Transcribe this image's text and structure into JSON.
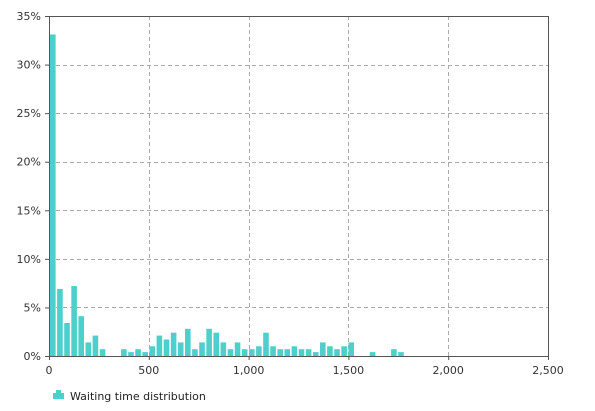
{
  "chart_data": {
    "type": "bar",
    "title": "",
    "xlabel": "",
    "ylabel": "",
    "xlim": [
      0,
      2500
    ],
    "ylim": [
      0,
      35
    ],
    "x_ticks": [
      0,
      500,
      1000,
      1500,
      2000,
      2500
    ],
    "x_tick_labels": [
      "0",
      "500",
      "1,000",
      "1,500",
      "2,000",
      "2,500"
    ],
    "y_ticks": [
      0,
      5,
      10,
      15,
      20,
      25,
      30,
      35
    ],
    "y_tick_labels": [
      "0%",
      "5%",
      "10%",
      "15%",
      "20%",
      "25%",
      "30%",
      "35%"
    ],
    "bin_width": 35.6,
    "grid": true,
    "legend_position": "bottom-left",
    "series": [
      {
        "name": "Waiting time distribution",
        "color": "#4dd0cc",
        "x": [
          0,
          35.6,
          71.2,
          106.8,
          142.4,
          178,
          213.6,
          249.2,
          284.8,
          320.4,
          356,
          391.6,
          427.2,
          462.8,
          498.4,
          534,
          569.6,
          605.2,
          640.8,
          676.4,
          712,
          747.6,
          783.2,
          818.8,
          854.4,
          890,
          925.6,
          961.2,
          996.8,
          1032.4,
          1068,
          1103.6,
          1139.2,
          1174.8,
          1210.4,
          1246,
          1281.6,
          1317.2,
          1352.8,
          1388.4,
          1424,
          1459.6,
          1495.2,
          1530.8,
          1566.4,
          1602,
          1637.6,
          1673.2,
          1708.8,
          1744.4,
          1780,
          1815.6,
          1851.2,
          1886.8,
          1922.4,
          1958,
          1993.6,
          2029.2,
          2064.8,
          2100.4,
          2136,
          2171.6,
          2207.2
        ],
        "values": [
          33.1,
          6.9,
          3.4,
          7.2,
          4.1,
          1.4,
          2.1,
          0.7,
          0,
          0,
          0.7,
          0.4,
          0.7,
          0.4,
          1.0,
          2.1,
          1.7,
          2.4,
          1.4,
          2.8,
          0.7,
          1.4,
          2.8,
          2.4,
          1.4,
          0.7,
          1.4,
          0.7,
          0.7,
          1.0,
          2.4,
          1.0,
          0.7,
          0.7,
          1.0,
          0.7,
          0.7,
          0.4,
          1.4,
          1.0,
          0.7,
          1.0,
          1.4,
          0,
          0,
          0.4,
          0,
          0,
          0.7,
          0.4,
          0,
          0,
          0,
          0,
          0,
          0,
          0,
          0,
          0,
          0,
          0,
          0,
          0
        ]
      }
    ]
  }
}
